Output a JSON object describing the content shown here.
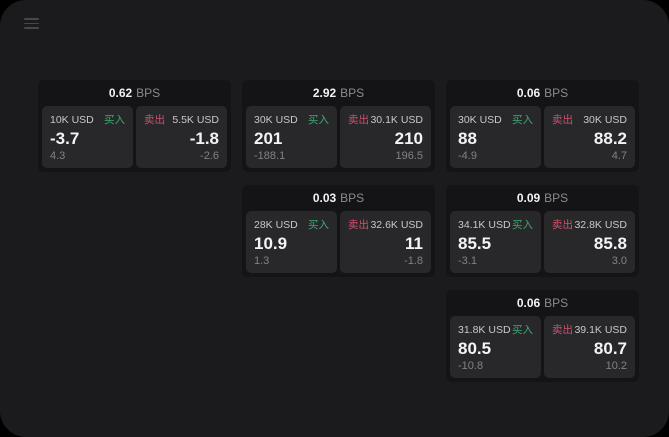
{
  "labels": {
    "bps": "BPS",
    "buy": "买入",
    "sell": "卖出"
  },
  "colors": {
    "background": "#000000",
    "panel": "#1b1b1d",
    "card": "#141416",
    "tile": "#28282a",
    "buy_accent": "#3ea873",
    "sell_accent": "#d04f6d"
  },
  "icons": {
    "menu": "hamburger-menu-icon"
  },
  "cards": [
    {
      "row": 0,
      "col": 0,
      "bps": "0.62",
      "buy": {
        "amount": "10K USD",
        "value": "-3.7",
        "delta": "4.3"
      },
      "sell": {
        "amount": "5.5K USD",
        "value": "-1.8",
        "delta": "-2.6"
      }
    },
    {
      "row": 0,
      "col": 1,
      "bps": "2.92",
      "buy": {
        "amount": "30K USD",
        "value": "201",
        "delta": "-188.1"
      },
      "sell": {
        "amount": "30.1K USD",
        "value": "210",
        "delta": "196.5"
      }
    },
    {
      "row": 0,
      "col": 2,
      "bps": "0.06",
      "buy": {
        "amount": "30K USD",
        "value": "88",
        "delta": "-4.9"
      },
      "sell": {
        "amount": "30K USD",
        "value": "88.2",
        "delta": "4.7"
      }
    },
    {
      "row": 1,
      "col": 1,
      "bps": "0.03",
      "buy": {
        "amount": "28K USD",
        "value": "10.9",
        "delta": "1.3"
      },
      "sell": {
        "amount": "32.6K USD",
        "value": "11",
        "delta": "-1.8"
      }
    },
    {
      "row": 1,
      "col": 2,
      "bps": "0.09",
      "buy": {
        "amount": "34.1K USD",
        "value": "85.5",
        "delta": "-3.1"
      },
      "sell": {
        "amount": "32.8K USD",
        "value": "85.8",
        "delta": "3.0"
      }
    },
    {
      "row": 2,
      "col": 2,
      "bps": "0.06",
      "buy": {
        "amount": "31.8K USD",
        "value": "80.5",
        "delta": "-10.8"
      },
      "sell": {
        "amount": "39.1K USD",
        "value": "80.7",
        "delta": "10.2"
      }
    }
  ]
}
